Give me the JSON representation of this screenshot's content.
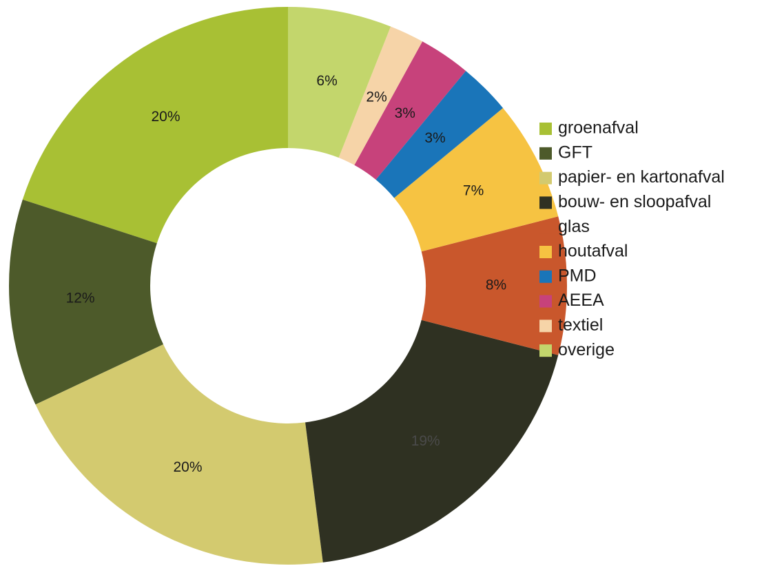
{
  "chart_data": {
    "type": "donut",
    "categories": [
      "groenafval",
      "GFT",
      "papier- en kartonafval",
      "bouw- en sloopafval",
      "glas",
      "houtafval",
      "PMD",
      "AEEA",
      "textiel",
      "overige"
    ],
    "values": [
      20,
      12,
      20,
      19,
      8,
      7,
      3,
      3,
      2,
      6
    ],
    "value_labels": [
      "20%",
      "12%",
      "20%",
      "19%",
      "8%",
      "7%",
      "3%",
      "3%",
      "2%",
      "6%"
    ],
    "colors": [
      "#a8c034",
      "#4d5a2a",
      "#d3ca6f",
      "#2f3122",
      "#c9572c",
      "#f6c342",
      "#1a75b9",
      "#c7427b",
      "#f6d4a8",
      "#c3d66c"
    ],
    "legend": "right"
  }
}
